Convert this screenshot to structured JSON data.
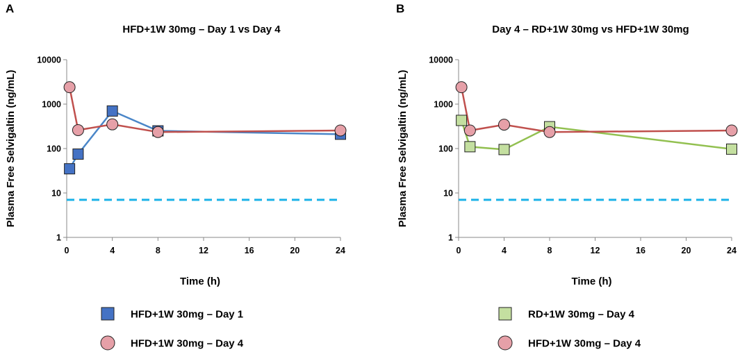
{
  "chart_data": [
    {
      "panel": "A",
      "type": "line",
      "title": "HFD+1W 30mg – Day 1 vs Day 4",
      "xlabel": "Time (h)",
      "ylabel": "Plasma Free Selvigaltin (ng/mL)",
      "yscale": "log",
      "ylim": [
        1,
        10000
      ],
      "xlim": [
        0,
        24
      ],
      "xticks": [
        "0",
        "4",
        "8",
        "12",
        "16",
        "20",
        "24"
      ],
      "yticks": [
        "1",
        "10",
        "100",
        "1000",
        "10000"
      ],
      "reference_line": {
        "y": 7,
        "style": "dashed",
        "color": "#1AB2E8"
      },
      "series": [
        {
          "name": "HFD+1W 30mg – Day 1",
          "marker": "square",
          "line_color": "#4A86C8",
          "fill": "#4472C4",
          "x": [
            0.25,
            1,
            4,
            8,
            24
          ],
          "y": [
            35,
            75,
            700,
            250,
            210
          ]
        },
        {
          "name": "HFD+1W 30mg – Day 4",
          "marker": "circle",
          "line_color": "#C0504D",
          "fill": "#E6A0A8",
          "x": [
            0.25,
            1,
            4,
            8,
            24
          ],
          "y": [
            2400,
            260,
            350,
            235,
            255
          ]
        }
      ]
    },
    {
      "panel": "B",
      "type": "line",
      "title": "Day 4 – RD+1W 30mg vs HFD+1W 30mg",
      "xlabel": "Time (h)",
      "ylabel": "Plasma Free Selvigaltin (ng/mL)",
      "yscale": "log",
      "ylim": [
        1,
        10000
      ],
      "xlim": [
        0,
        24
      ],
      "xticks": [
        "0",
        "4",
        "8",
        "12",
        "16",
        "20",
        "24"
      ],
      "yticks": [
        "1",
        "10",
        "100",
        "1000",
        "10000"
      ],
      "reference_line": {
        "y": 7,
        "style": "dashed",
        "color": "#1AB2E8"
      },
      "series": [
        {
          "name": "RD+1W 30mg – Day 4",
          "marker": "square",
          "line_color": "#92C050",
          "fill": "#C4DFA0",
          "x": [
            0.25,
            1,
            4,
            8,
            24
          ],
          "y": [
            430,
            110,
            95,
            310,
            97
          ]
        },
        {
          "name": "HFD+1W 30mg – Day 4",
          "marker": "circle",
          "line_color": "#C0504D",
          "fill": "#E6A0A8",
          "x": [
            0.25,
            1,
            4,
            8,
            24
          ],
          "y": [
            2400,
            255,
            345,
            235,
            255
          ]
        }
      ]
    }
  ]
}
